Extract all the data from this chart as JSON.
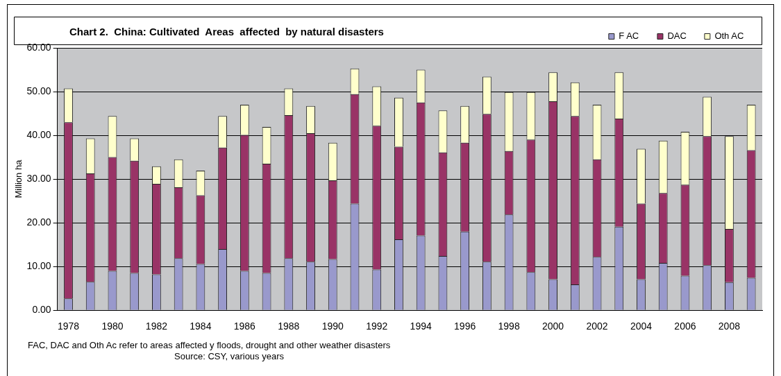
{
  "chart_data": {
    "type": "bar",
    "stacked": true,
    "title": "Chart 2.  China: Cultivated  Areas  affected  by natural disasters",
    "ylabel": "Million ha",
    "categories": [
      "1978",
      null,
      "1980",
      null,
      "1982",
      null,
      "1984",
      null,
      "1986",
      null,
      "1988",
      null,
      "1990",
      null,
      "1992",
      null,
      "1994",
      null,
      "1996",
      null,
      "1998",
      null,
      "2000",
      null,
      "2002",
      null,
      "2004",
      null,
      "2006",
      null,
      "2008",
      null
    ],
    "series": [
      {
        "name": "F AC",
        "color": "#9999cc",
        "values": [
          2.7,
          6.5,
          9.0,
          8.5,
          8.2,
          11.9,
          10.6,
          14.0,
          9.0,
          8.5,
          11.9,
          11.1,
          11.7,
          24.4,
          9.3,
          16.2,
          17.1,
          12.4,
          18.0,
          11.1,
          21.9,
          8.7,
          7.1,
          5.9,
          12.2,
          19.1,
          7.1,
          10.8,
          7.9,
          10.3,
          6.4,
          7.4
        ]
      },
      {
        "name": "DAC",
        "color": "#993366",
        "values": [
          40.3,
          24.8,
          26.0,
          25.7,
          20.7,
          16.2,
          15.7,
          23.2,
          31.1,
          25.0,
          32.7,
          29.4,
          18.0,
          25.0,
          32.9,
          21.2,
          30.4,
          23.7,
          20.3,
          33.8,
          14.5,
          30.3,
          40.7,
          38.5,
          22.3,
          24.7,
          17.3,
          16.0,
          20.8,
          29.5,
          12.2,
          29.2
        ]
      },
      {
        "name": "Oth AC",
        "color": "#ffffcc",
        "values": [
          7.7,
          8.0,
          9.4,
          5.1,
          4.0,
          6.4,
          5.6,
          7.2,
          6.9,
          8.4,
          6.1,
          6.2,
          8.6,
          5.9,
          9.0,
          11.2,
          7.5,
          9.6,
          8.4,
          8.5,
          13.5,
          10.9,
          6.6,
          7.7,
          12.5,
          10.6,
          12.5,
          12.0,
          12.1,
          9.0,
          21.2,
          10.4
        ]
      }
    ],
    "ylim": [
      0,
      60
    ],
    "yticks": [
      {
        "value": 0,
        "label": "0.00"
      },
      {
        "value": 10,
        "label": "10.00"
      },
      {
        "value": 20,
        "label": "20.00"
      },
      {
        "value": 30,
        "label": "30.00"
      },
      {
        "value": 40,
        "label": "40.00"
      },
      {
        "value": 50,
        "label": "50.00"
      },
      {
        "value": 60,
        "label": "60.00"
      }
    ],
    "grid": "y",
    "legend": "top right",
    "annotations": [
      "FAC, DAC and Oth Ac refer to areas affected y floods, drought and other weather disasters",
      "Source: CSY, various years"
    ]
  }
}
